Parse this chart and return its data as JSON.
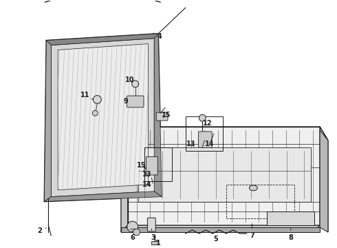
{
  "background_color": "#ffffff",
  "fig_width": 4.9,
  "fig_height": 3.6,
  "dpi": 100,
  "line_color": "#1a1a1a",
  "label_fontsize": 7.0,
  "label_fontweight": "bold",
  "hatch_color": "#888888",
  "gate_face_color": "#e8e8e8",
  "gate_side_color": "#cccccc",
  "gate_top_color": "#d4d4d4",
  "glass_hatch_color": "#bbbbbb"
}
